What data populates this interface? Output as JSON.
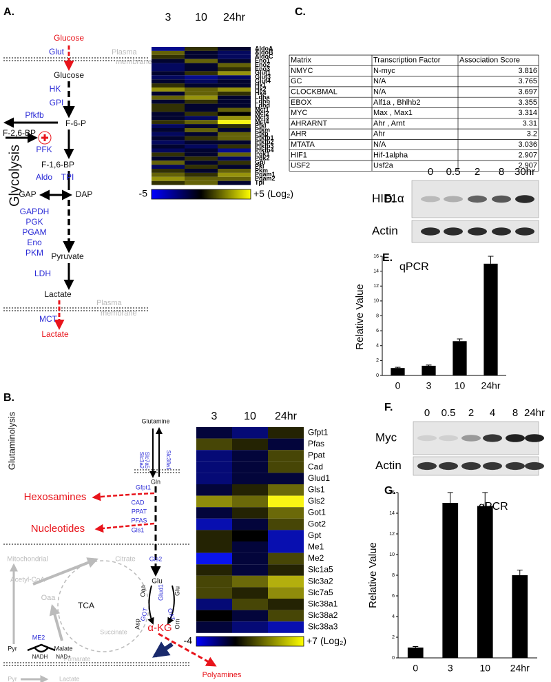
{
  "panel_labels": [
    "A.",
    "B.",
    "C.",
    "D.",
    "E.",
    "F.",
    "G."
  ],
  "diagram_a": {
    "title": "Glycolysis",
    "labels": [
      "Glucose",
      "Glut",
      "Plasma",
      "membrane",
      "Glucose",
      "HK",
      "GPI",
      "Pfkfb",
      "F-6-P",
      "F-2,6-BP",
      "PFK",
      "F-1,6-BP",
      "Aldo",
      "TPI",
      "GAP",
      "DAP",
      "GAPDH",
      "PGK",
      "PGAM",
      "Eno",
      "PKM",
      "Pyruvate",
      "LDH",
      "Lactate",
      "Plasma",
      "membrane",
      "MCT",
      "Lactate"
    ]
  },
  "heatmap_a": {
    "columns": [
      "3",
      "10",
      "24hr"
    ],
    "rows": [
      "AldoA",
      "AldoB",
      "AldoC",
      "Eno1",
      "Eno2",
      "Eno3",
      "Glut1",
      "Glut3",
      "Glut4",
      "Hk1",
      "Hk2",
      "Hk4",
      "Ldha",
      "Ldhb",
      "Ldhd",
      "Mct1",
      "Mct2",
      "Mct3",
      "Mct4",
      "Pfkl",
      "Pfkm",
      "Pfkp",
      "Pfkfb1",
      "Pfkfb2",
      "Pfkfb3",
      "Pfkfb4",
      "Pgk1",
      "Pgk2",
      "Gpi",
      "Pkl",
      "Pkm",
      "Pgam1",
      "Pgam2",
      "Tpi"
    ],
    "values": [
      [
        -3,
        1,
        -1
      ],
      [
        2,
        -1,
        -2
      ],
      [
        1,
        -1,
        -2
      ],
      [
        -1,
        2,
        -1
      ],
      [
        -2,
        -1,
        2
      ],
      [
        -2,
        -1,
        1
      ],
      [
        -1,
        1,
        3
      ],
      [
        -2,
        -3,
        -2
      ],
      [
        -1,
        -2,
        -1
      ],
      [
        1,
        -1,
        -1
      ],
      [
        3,
        2,
        3
      ],
      [
        -1,
        2,
        1
      ],
      [
        2,
        3,
        -1
      ],
      [
        -1,
        1,
        -1
      ],
      [
        1,
        -1,
        -1
      ],
      [
        1,
        -1,
        2
      ],
      [
        -1,
        1,
        0
      ],
      [
        -1,
        -2,
        3
      ],
      [
        1,
        2,
        5
      ],
      [
        -2,
        -1,
        1
      ],
      [
        -1,
        2,
        -1
      ],
      [
        -2,
        -1,
        2
      ],
      [
        -1,
        1,
        2
      ],
      [
        -2,
        -1,
        -1
      ],
      [
        -1,
        -2,
        1
      ],
      [
        -2,
        -1,
        -3
      ],
      [
        1,
        -1,
        2
      ],
      [
        -1,
        1,
        -2
      ],
      [
        2,
        -1,
        1
      ],
      [
        -2,
        1,
        -1
      ],
      [
        1,
        -1,
        2
      ],
      [
        2,
        1,
        3
      ],
      [
        3,
        2,
        2
      ],
      [
        1,
        2,
        -1
      ]
    ],
    "scale": {
      "lim": [
        -5,
        {
          "value": 5,
          "label": "+5"
        }
      ],
      "unit": "(Log₂)"
    }
  },
  "table": {
    "header": [
      "Matrix",
      "Transcription Factor",
      "Association Score"
    ],
    "rows": [
      [
        "NMYC",
        "N-myc",
        3.816
      ],
      [
        "GC",
        "N/A",
        3.765
      ],
      [
        "CLOCKBMAL",
        "N/A",
        3.697
      ],
      [
        "EBOX",
        "Alf1a , Bhlhb2",
        3.355
      ],
      [
        "MYC",
        "Max , Max1",
        3.314
      ],
      [
        "AHRARNT",
        "Ahr , Arnt",
        3.31
      ],
      [
        "AHR",
        "Ahr",
        3.2
      ],
      [
        "MTATA",
        "N/A",
        3.036
      ],
      [
        "HIF1",
        "Hif-1alpha",
        2.907
      ],
      [
        "USF2",
        "Usf2a",
        2.907
      ]
    ]
  },
  "blot_d": {
    "lanes": [
      "0",
      "0.5",
      "2",
      "8",
      "30hr"
    ],
    "rows": [
      "HIF1α",
      "Actin"
    ],
    "intensities": [
      [
        0.2,
        0.25,
        0.6,
        0.65,
        0.85
      ],
      [
        0.85,
        0.85,
        0.85,
        0.85,
        0.85
      ]
    ]
  },
  "blot_f": {
    "lanes": [
      "0",
      "0.5",
      "2",
      "4",
      "8",
      "24hr"
    ],
    "rows": [
      "Myc",
      "Actin"
    ],
    "intensities": [
      [
        0.1,
        0.1,
        0.35,
        0.8,
        0.9,
        0.9
      ],
      [
        0.8,
        0.8,
        0.8,
        0.8,
        0.8,
        0.8
      ]
    ]
  },
  "chart_data": [
    {
      "type": "bar",
      "title": "qPCR",
      "ylabel": "Relative Value",
      "categories": [
        "0",
        "3",
        "10",
        "24hr"
      ],
      "values": [
        1,
        1.3,
        4.6,
        15
      ],
      "errors": [
        0.1,
        0.1,
        0.3,
        1
      ],
      "color": "#000000",
      "ylim": [
        0,
        16
      ],
      "yticks": [
        0,
        2,
        4,
        6,
        8,
        10,
        12,
        14,
        16
      ]
    },
    {
      "type": "bar",
      "title": "qPCR",
      "ylabel": "Relative Value",
      "categories": [
        "0",
        "3",
        "10",
        "24hr"
      ],
      "values": [
        1,
        15,
        14.7,
        8
      ],
      "errors": [
        0.1,
        1,
        1.3,
        0.5
      ],
      "color": "#000000",
      "ylim": [
        0,
        16
      ],
      "yticks": [
        0,
        2,
        4,
        6,
        8,
        10,
        12,
        14,
        16
      ]
    }
  ],
  "diagram_b": {
    "labels": [
      "Glutaminolysis",
      "Glutamine",
      "Slc3a2",
      "Slc7a5",
      "Slc38a1",
      "Gln",
      "Gfpt1",
      "Hexosamines",
      "CAD",
      "PPAT",
      "PFAS",
      "Gls1",
      "Nucleotides",
      "Mitochondrial",
      "Citrate",
      "Gls2",
      "Acetyl-CoA",
      "Glu",
      "Oaa",
      "Oaa",
      "Glud1",
      "Glu",
      "TCA",
      "GOT",
      "OAT",
      "Asp",
      "Orn",
      "α-KG",
      "Succinate",
      "ME2",
      "Pyr",
      "Malate",
      "NADH",
      "NAD+",
      "Fumarate",
      "Pyr",
      "Lactate",
      "Polyamines"
    ]
  },
  "heatmap_b": {
    "columns": [
      "3",
      "10",
      "24hr"
    ],
    "rows": [
      "Gfpt1",
      "Pfas",
      "Ppat",
      "Cad",
      "Glud1",
      "Gls1",
      "Gls2",
      "Got1",
      "Got2",
      "Gpt",
      "Me1",
      "Me2",
      "Slc1a5",
      "Slc3a2",
      "Slc7a5",
      "Slc38a1",
      "Slc38a2",
      "Slc38a3"
    ],
    "values": [
      [
        -1,
        -2,
        1
      ],
      [
        2,
        1,
        -1
      ],
      [
        -2,
        -1,
        2
      ],
      [
        -2,
        -1,
        2
      ],
      [
        -2,
        -1,
        -1
      ],
      [
        -1,
        1,
        3
      ],
      [
        4,
        3,
        7
      ],
      [
        -1,
        1,
        3
      ],
      [
        -3,
        -1,
        2
      ],
      [
        1,
        0,
        -3
      ],
      [
        1,
        -1,
        -3
      ],
      [
        -4,
        -1,
        2
      ],
      [
        1,
        -1,
        1
      ],
      [
        2,
        3,
        5
      ],
      [
        2,
        1,
        4
      ],
      [
        -2,
        2,
        1
      ],
      [
        0,
        -1,
        2
      ],
      [
        -1,
        -2,
        -3
      ]
    ],
    "scale": {
      "lim": [
        -4,
        {
          "value": 7,
          "label": "+7"
        }
      ],
      "unit": "(Log₂)"
    }
  }
}
